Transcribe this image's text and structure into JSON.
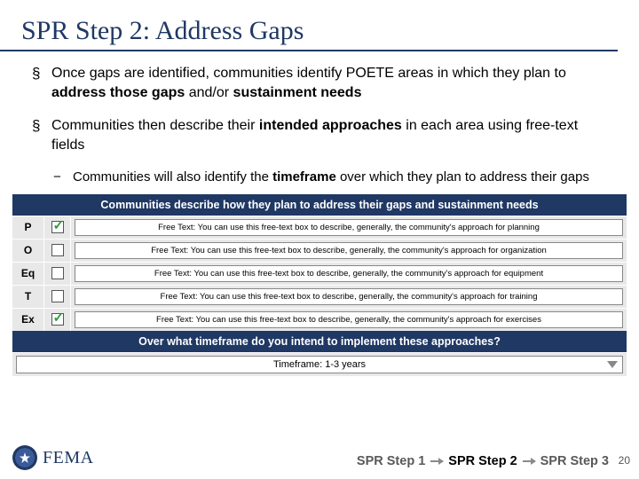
{
  "title": "SPR Step 2: Address Gaps",
  "bullets": {
    "b1_pre": "Once gaps are identified, communities identify POETE areas in which they plan to ",
    "b1_bold1": "address those gaps",
    "b1_mid": " and/or ",
    "b1_bold2": "sustainment needs",
    "b2_pre": "Communities then describe their ",
    "b2_bold1": "intended approaches",
    "b2_post": " in each area using free-text fields",
    "b2a_pre": "Communities will also identify the ",
    "b2a_bold": "timeframe",
    "b2a_post": " over which they plan to address their gaps"
  },
  "table": {
    "header": "Communities describe how they plan to address their gaps and sustainment needs",
    "rows": [
      {
        "code": "P",
        "checked": true,
        "text": "Free Text: You can use this free-text box to describe, generally, the community's approach for planning"
      },
      {
        "code": "O",
        "checked": false,
        "text": "Free Text: You can use this free-text box to describe, generally, the community's approach for organization"
      },
      {
        "code": "Eq",
        "checked": false,
        "text": "Free Text: You can use this free-text box to describe, generally, the community's approach for equipment"
      },
      {
        "code": "T",
        "checked": false,
        "text": "Free Text: You can use this free-text box to describe, generally, the community's approach for training"
      },
      {
        "code": "Ex",
        "checked": true,
        "text": "Free Text: You can use this free-text box to describe, generally, the community's approach for exercises"
      }
    ],
    "tf_header": "Over what timeframe do you intend to implement these approaches?",
    "tf_value": "Timeframe: 1-3 years"
  },
  "footer": {
    "agency": "FEMA",
    "step1": "SPR Step 1",
    "step2": "SPR Step 2",
    "step3": "SPR Step 3",
    "page": "20"
  },
  "colors": {
    "brand_dark": "#1f3864",
    "row_bg": "#e8e8e8",
    "check_green": "#2e9e3f",
    "muted": "#595959"
  }
}
